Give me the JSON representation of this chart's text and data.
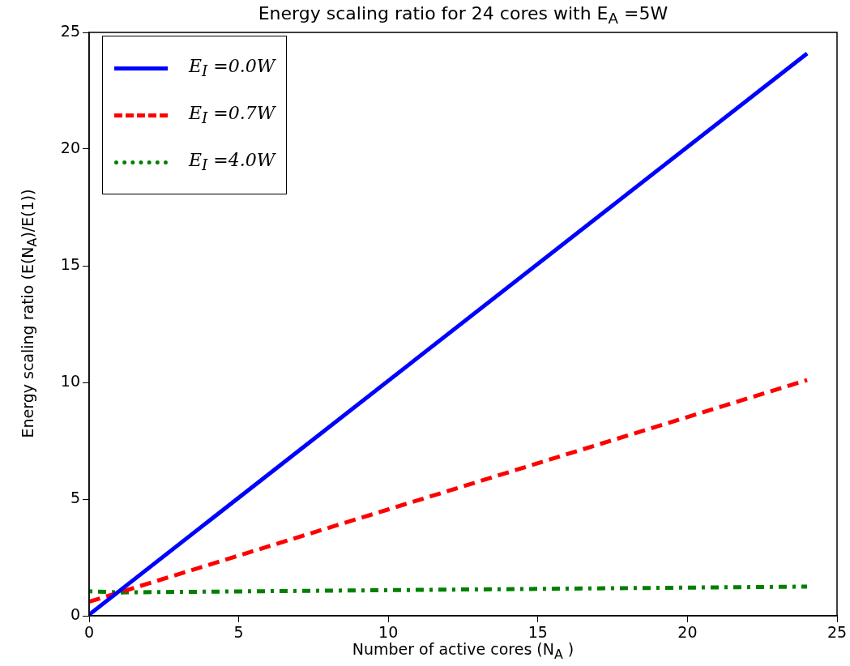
{
  "chart_data": {
    "type": "line",
    "title": "Energy scaling ratio for 24 cores with E$_{A}$ =5W",
    "xlabel": "Number of active cores (N$_{A}$ )",
    "ylabel": "Energy scaling ratio (E(N$_{A}$)/E(1))",
    "xlim": [
      0,
      25
    ],
    "xticks": [
      0,
      5,
      10,
      15,
      20,
      25
    ],
    "ylim": [
      0,
      25
    ],
    "yticks": [
      0,
      5,
      10,
      15,
      20,
      25
    ],
    "grid": false,
    "legend": "top left",
    "marker": "none",
    "series": [
      {
        "name": "E$_{I}$ =0.0W",
        "color": "#0000ff",
        "line_style": "solid",
        "x": [
          0,
          24
        ],
        "values": [
          0.05,
          24.1
        ]
      },
      {
        "name": "E$_{I}$ =0.7W",
        "color": "#ff0000",
        "line_style": "dashed",
        "x": [
          0,
          24
        ],
        "values": [
          0.6,
          10.1
        ]
      },
      {
        "name": "E$_{I}$ =4.0W",
        "color": "#008000",
        "line_style": "dotted",
        "x": [
          0,
          1,
          24
        ],
        "values": [
          1.05,
          1.0,
          1.25
        ]
      }
    ]
  }
}
